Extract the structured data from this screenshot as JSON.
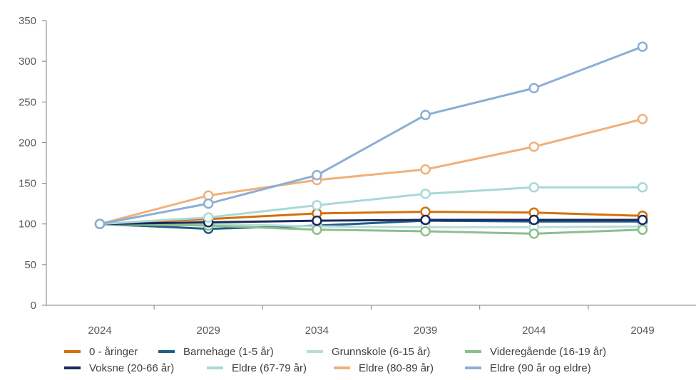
{
  "chart_data": {
    "type": "line",
    "title": "",
    "xlabel": "",
    "ylabel": "",
    "x": [
      "2024",
      "2029",
      "2034",
      "2039",
      "2044",
      "2049"
    ],
    "ylim": [
      0,
      350
    ],
    "yticks": [
      0,
      50,
      100,
      150,
      200,
      250,
      300,
      350
    ],
    "grid": false,
    "legend_position": "bottom",
    "series": [
      {
        "name": "0 - åringer",
        "color": "#d4700a",
        "values": [
          100,
          106,
          113,
          115,
          114,
          110
        ]
      },
      {
        "name": "Barnehage (1-5 år)",
        "color": "#1f5f8b",
        "values": [
          100,
          94,
          98,
          104,
          103,
          103
        ]
      },
      {
        "name": "Grunnskole (6-15 år)",
        "color": "#b9dcd9",
        "values": [
          100,
          100,
          97,
          96,
          96,
          97
        ]
      },
      {
        "name": "Videregående (16-19 år)",
        "color": "#8cbf8c",
        "values": [
          100,
          98,
          93,
          91,
          88,
          93
        ]
      },
      {
        "name": "Voksne (20-66 år)",
        "color": "#1a2a5c",
        "values": [
          100,
          102,
          104,
          105,
          105,
          105
        ]
      },
      {
        "name": "Eldre (67-79 år)",
        "color": "#a9d9d6",
        "values": [
          100,
          108,
          123,
          137,
          145,
          145
        ]
      },
      {
        "name": "Eldre (80-89 år)",
        "color": "#f0b07a",
        "values": [
          100,
          135,
          154,
          167,
          195,
          229
        ]
      },
      {
        "name": "Eldre (90 år og eldre)",
        "color": "#8caed4",
        "values": [
          100,
          125,
          160,
          234,
          267,
          318
        ]
      }
    ]
  }
}
